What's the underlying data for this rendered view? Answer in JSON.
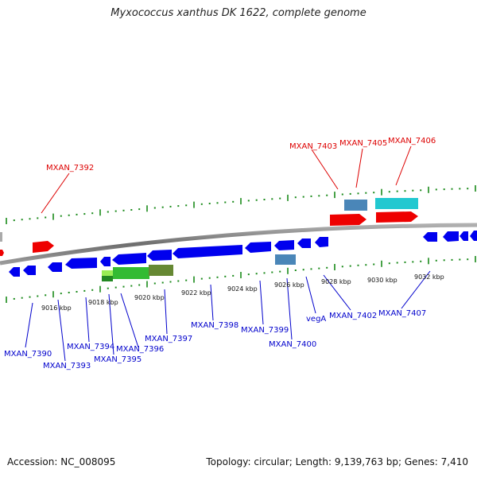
{
  "title": "Myxococcus xanthus DK 1622, complete genome",
  "footer": {
    "accession": "Accession: NC_008095",
    "summary": "Topology: circular; Length: 9,139,763 bp; Genes: 7,410"
  },
  "colors": {
    "forward_label": "#dd0000",
    "reverse_label": "#0000cc",
    "tick": "#1a8a1a",
    "backbone": "#808080"
  },
  "scale_labels": [
    "9016 kbp",
    "9018 kbp",
    "9020 kbp",
    "9022 kbp",
    "9024 kbp",
    "9026 kbp",
    "9028 kbp",
    "9030 kbp",
    "9032 kbp"
  ],
  "forward_labels": [
    "MXAN_7392",
    "MXAN_7403",
    "MXAN_7405",
    "MXAN_7406"
  ],
  "reverse_labels": [
    "MXAN_7390",
    "MXAN_7393",
    "MXAN_7394",
    "MXAN_7395",
    "MXAN_7396",
    "MXAN_7397",
    "MXAN_7398",
    "MXAN_7399",
    "MXAN_7400",
    "vegA",
    "MXAN_7402",
    "MXAN_7407"
  ]
}
